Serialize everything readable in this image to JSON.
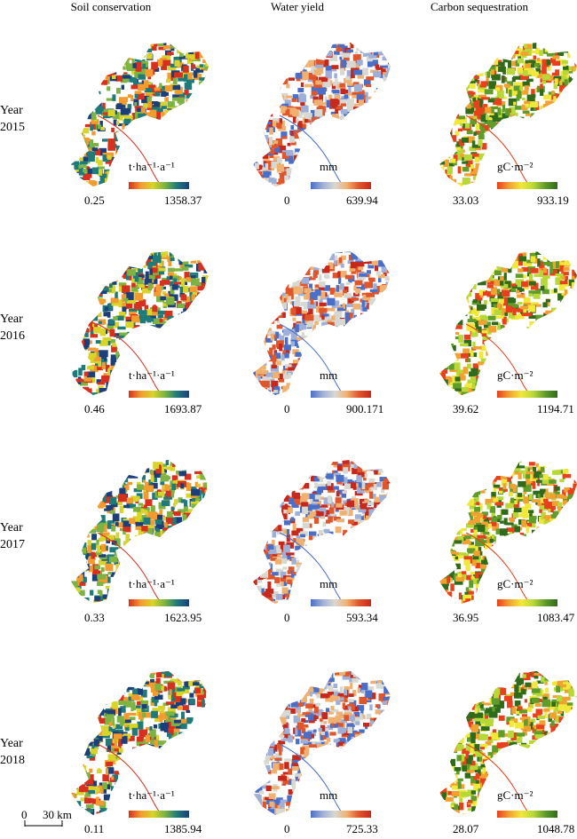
{
  "columns": [
    {
      "title": "Soil conservation",
      "unit": "t·ha⁻¹·a⁻¹",
      "ramp": [
        "#d7301f",
        "#f39b2e",
        "#d8d42a",
        "#7cb342",
        "#1f7a7a",
        "#1c3f7a"
      ]
    },
    {
      "title": "Water yield",
      "unit": "mm",
      "ramp": [
        "#4a6fc9",
        "#9fb0d8",
        "#d8d8d2",
        "#f0b070",
        "#e0552a",
        "#c8281c"
      ]
    },
    {
      "title": "Carbon sequestration",
      "unit": "gC·m⁻²",
      "ramp": [
        "#e8401c",
        "#f2a030",
        "#f2e83a",
        "#b8d838",
        "#5f9c2a",
        "#2f6b1a"
      ]
    }
  ],
  "rows": [
    {
      "year_label": "Year",
      "year": "2015",
      "ranges": [
        [
          "0.25",
          "1358.37"
        ],
        [
          "0",
          "639.94"
        ],
        [
          "33.03",
          "933.19"
        ]
      ]
    },
    {
      "year_label": "Year",
      "year": "2016",
      "ranges": [
        [
          "0.46",
          "1693.87"
        ],
        [
          "0",
          "900.171"
        ],
        [
          "39.62",
          "1194.71"
        ]
      ]
    },
    {
      "year_label": "Year",
      "year": "2017",
      "ranges": [
        [
          "0.33",
          "1623.95"
        ],
        [
          "0",
          "593.34"
        ],
        [
          "36.95",
          "1083.47"
        ]
      ]
    },
    {
      "year_label": "Year",
      "year": "2018",
      "ranges": [
        [
          "0.11",
          "1385.94"
        ],
        [
          "0",
          "725.33"
        ],
        [
          "28.07",
          "1048.78"
        ]
      ]
    }
  ],
  "scale_bar": {
    "start": "0",
    "end": "30",
    "unit": "km"
  }
}
